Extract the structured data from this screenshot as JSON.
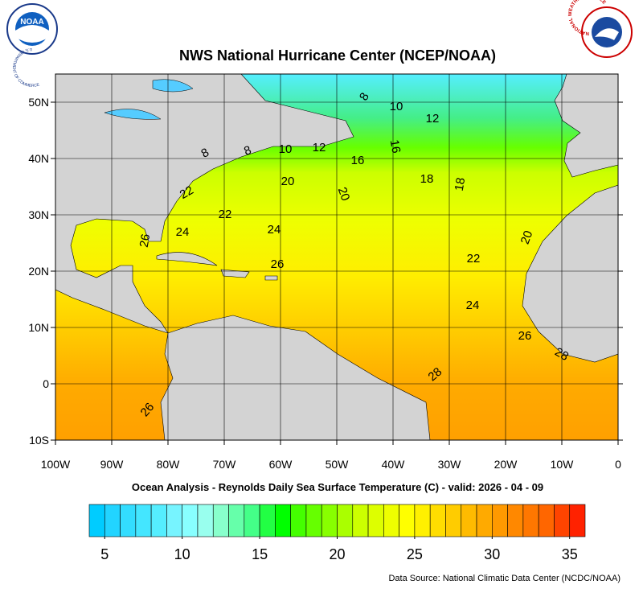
{
  "header": {
    "title": "NWS National Hurricane Center (NCEP/NOAA)",
    "noaa_logo_text": "NOAA",
    "noaa_ring_text": "U.S. DEPARTMENT OF COMMERCE",
    "nws_ring_text": "NATIONAL WEATHER SERVICE"
  },
  "map": {
    "xlim": [
      -100,
      0
    ],
    "ylim": [
      -10,
      55
    ],
    "xticks": [
      {
        "value": -100,
        "label": "100W"
      },
      {
        "value": -90,
        "label": "90W"
      },
      {
        "value": -80,
        "label": "80W"
      },
      {
        "value": -70,
        "label": "70W"
      },
      {
        "value": -60,
        "label": "60W"
      },
      {
        "value": -50,
        "label": "50W"
      },
      {
        "value": -40,
        "label": "40W"
      },
      {
        "value": -30,
        "label": "30W"
      },
      {
        "value": -20,
        "label": "20W"
      },
      {
        "value": -10,
        "label": "10W"
      },
      0
    ],
    "yticks": [
      {
        "value": -10,
        "label": "10S"
      },
      0,
      {
        "value": 10,
        "label": "10N"
      },
      {
        "value": 20,
        "label": "20N"
      },
      {
        "value": 30,
        "label": "30N"
      },
      {
        "value": 40,
        "label": "40N"
      },
      {
        "value": 50,
        "label": "50N"
      }
    ],
    "grid": true,
    "contour_labels": [
      8,
      10,
      12,
      8,
      8,
      10,
      12,
      16,
      16,
      18,
      18,
      20,
      20,
      22,
      22,
      24,
      24,
      26,
      26,
      22,
      20,
      24,
      26,
      28,
      28,
      26
    ]
  },
  "caption": "Ocean Analysis - Reynolds Daily Sea Surface Temperature (C) - valid: 2026 - 04 - 09",
  "colorbar": {
    "lim": [
      4,
      36
    ],
    "ticks": [
      5,
      10,
      15,
      20,
      25,
      30,
      35
    ],
    "colors": [
      "#00ccff",
      "#22d4ff",
      "#33ddff",
      "#44e6ff",
      "#55eeff",
      "#77f4ff",
      "#88ffff",
      "#99ffee",
      "#88ffcc",
      "#66ffaa",
      "#44ff88",
      "#22ff44",
      "#00ff00",
      "#44ff00",
      "#66ff00",
      "#88ff00",
      "#aaff00",
      "#ccff00",
      "#ddff00",
      "#eeff00",
      "#ffff00",
      "#fff000",
      "#ffdd00",
      "#ffcc00",
      "#ffbb00",
      "#ffaa00",
      "#ff9900",
      "#ff8800",
      "#ff7700",
      "#ff6600",
      "#ff4400",
      "#ff2200"
    ]
  },
  "source": "Data Source: National Climatic Data Center (NCDC/NOAA)"
}
